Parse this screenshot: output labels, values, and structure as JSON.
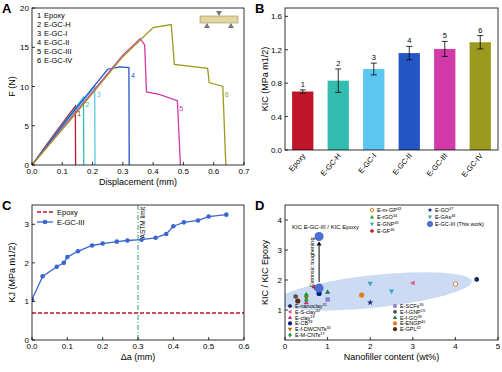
{
  "chart_data": [
    {
      "type": "line",
      "title": "A",
      "xlabel": "Displacement (mm)",
      "ylabel": "F (N)",
      "xlim": [
        0,
        0.7
      ],
      "xticks": [
        {
          "value": 0,
          "label": "0.0"
        },
        0.1,
        0.2,
        0.3,
        0.4,
        0.5,
        0.6,
        0.7
      ],
      "ylim": [
        0,
        20
      ],
      "yticks": [
        0,
        5,
        10,
        15,
        20
      ],
      "legend": "upper left",
      "annotations": [
        "1",
        "2",
        "3",
        "4",
        "5",
        "6"
      ],
      "series": [
        {
          "name": "Epoxy",
          "color": "#c0142a",
          "line_style": "solid",
          "x": [
            0,
            0.05,
            0.1,
            0.143,
            0.144
          ],
          "values": [
            0,
            2.7,
            5.3,
            7.5,
            0
          ]
        },
        {
          "name": "E-GC-H",
          "color": "#33bdb0",
          "line_style": "solid",
          "x": [
            0,
            0.08,
            0.17,
            0.171
          ],
          "values": [
            0,
            4.1,
            8.6,
            0
          ]
        },
        {
          "name": "E-GC-I",
          "color": "#5cc6f2",
          "line_style": "solid",
          "x": [
            0,
            0.1,
            0.207,
            0.208
          ],
          "values": [
            0,
            4.9,
            10.0,
            0
          ]
        },
        {
          "name": "E-GC-II",
          "color": "#2455c4",
          "line_style": "solid",
          "x": [
            0,
            0.12,
            0.25,
            0.29,
            0.32,
            0.321
          ],
          "values": [
            0,
            6.0,
            12.2,
            12.5,
            12.4,
            0
          ]
        },
        {
          "name": "E-GC-III",
          "color": "#d13aa8",
          "line_style": "solid",
          "x": [
            0,
            0.15,
            0.3,
            0.357,
            0.372,
            0.378,
            0.42,
            0.48,
            0.49
          ],
          "values": [
            0,
            7.0,
            14.0,
            16.1,
            15.3,
            9.3,
            9.0,
            8.2,
            0
          ]
        },
        {
          "name": "E-GC-IV",
          "color": "#9c9a1e",
          "line_style": "solid",
          "x": [
            0,
            0.15,
            0.3,
            0.4,
            0.46,
            0.47,
            0.58,
            0.585,
            0.63,
            0.64
          ],
          "values": [
            0,
            6.8,
            13.8,
            17.5,
            17.9,
            12.8,
            12.3,
            10.5,
            10.0,
            0
          ]
        }
      ]
    },
    {
      "type": "bar",
      "title": "B",
      "ylabel": "KIC (MPa m1/2)",
      "categories": [
        "Epoxy",
        "E-GC-H",
        "E-GC-I",
        "E-GC-II",
        "E-GC-III",
        "E-GC-IV"
      ],
      "values": [
        0.7,
        0.83,
        0.97,
        1.16,
        1.21,
        1.29
      ],
      "errors": [
        0.02,
        0.14,
        0.07,
        0.08,
        0.09,
        0.08
      ],
      "colors": [
        "#c0142a",
        "#33bdb0",
        "#5cc6f2",
        "#2455c4",
        "#d13aa8",
        "#9c9a1e"
      ],
      "ylim": [
        0,
        1.7
      ],
      "yticks": [
        {
          "value": 0,
          "label": "0.0"
        },
        0.4,
        0.8,
        1.2,
        1.6
      ],
      "annotations": [
        "1",
        "2",
        "3",
        "4",
        "5",
        "6"
      ]
    },
    {
      "type": "line",
      "title": "C",
      "xlabel": "Δa (mm)",
      "ylabel": "KJ (MPa m1/2)",
      "xlim": [
        0,
        0.6
      ],
      "xticks": [
        {
          "value": 0,
          "label": "0.0"
        },
        0.1,
        0.2,
        0.3,
        0.4,
        0.5,
        0.6
      ],
      "ylim": [
        0,
        3.5
      ],
      "yticks": [
        0,
        1,
        2,
        3
      ],
      "legend": "upper left",
      "annotations": [
        {
          "text": "ASTM limit",
          "x": 0.3
        }
      ],
      "series": [
        {
          "name": "Epoxy",
          "color": "#c0142a",
          "line_style": "dashed",
          "x": [
            0,
            0.6
          ],
          "values": [
            0.7,
            0.7
          ]
        },
        {
          "name": "E-GC-III",
          "color": "#3a66d0",
          "line_style": "solid",
          "marker": "circle",
          "x": [
            0,
            0.03,
            0.07,
            0.09,
            0.1,
            0.13,
            0.17,
            0.2,
            0.24,
            0.27,
            0.31,
            0.35,
            0.38,
            0.4,
            0.43,
            0.47,
            0.5,
            0.55
          ],
          "values": [
            1.05,
            1.65,
            1.9,
            2.0,
            2.15,
            2.3,
            2.45,
            2.5,
            2.55,
            2.58,
            2.6,
            2.65,
            2.75,
            2.95,
            3.05,
            3.1,
            3.2,
            3.25
          ]
        }
      ]
    },
    {
      "type": "scatter",
      "title": "D",
      "xlabel": "Nanofiller content (wt%)",
      "ylabel": "KIC / KIC Epoxy",
      "xlim": [
        0,
        5
      ],
      "xticks": [
        0,
        1,
        2,
        3,
        4,
        5
      ],
      "ylim": [
        0,
        4.5
      ],
      "yticks": [
        1,
        2,
        3,
        4
      ],
      "annotations": [
        "KIC E-GC-III / KIC Epoxy",
        "Extrinsic toughening"
      ],
      "series": [
        {
          "name": "E-nanoclay31",
          "color": "#1a2a5a",
          "marker": "hexagon",
          "x": [
            4.5
          ],
          "values": [
            2.02
          ]
        },
        {
          "name": "E-S-clay32",
          "color": "#e05a8a",
          "marker": "triangle_left",
          "x": [
            3.0
          ],
          "values": [
            1.9
          ]
        },
        {
          "name": "E-clay18",
          "color": "#c03090",
          "marker": "triangle_up",
          "x": [
            0.5
          ],
          "values": [
            1.25
          ]
        },
        {
          "name": "E-CB33",
          "color": "#0a1f7a",
          "marker": "circle",
          "x": [
            0.8
          ],
          "values": [
            1.55
          ]
        },
        {
          "name": "E-f-DWCNTs34",
          "color": "#c05a00",
          "marker": "triangle_down",
          "x": [
            0.5
          ],
          "values": [
            1.4
          ]
        },
        {
          "name": "E-M-CNTs17",
          "color": "#1f9a3a",
          "marker": "diamond",
          "x": [
            0.5
          ],
          "values": [
            1.5
          ]
        },
        {
          "name": "E-SCFs36",
          "color": "#8a7fc8",
          "marker": "square",
          "x": [
            1.0
          ],
          "values": [
            1.35
          ]
        },
        {
          "name": "E-f-GNP19",
          "color": "#555555",
          "marker": "hexagon",
          "x": [
            0.25
          ],
          "values": [
            1.45
          ]
        },
        {
          "name": "E-f-GO39",
          "color": "#1e7a50",
          "marker": "triangle_up",
          "x": [
            1.0
          ],
          "values": [
            1.6
          ]
        },
        {
          "name": "E-ENGP40",
          "color": "#e87a1a",
          "marker": "circle",
          "x": [
            1.8
          ],
          "values": [
            1.5
          ]
        },
        {
          "name": "E-GPL42",
          "color": "#5a2a1a",
          "marker": "circle",
          "x": [
            0.3
          ],
          "values": [
            1.3
          ]
        },
        {
          "name": "E-m-GP43",
          "color": "#e08030",
          "marker": "circle_open",
          "x": [
            4.0
          ],
          "values": [
            1.87
          ]
        },
        {
          "name": "E-rGO44",
          "color": "#2aa02a",
          "marker": "triangle_up",
          "x": [
            0.5
          ],
          "values": [
            1.35
          ]
        },
        {
          "name": "E-GNP45",
          "color": "#30b0d0",
          "marker": "triangle_down",
          "x": [
            2.5
          ],
          "values": [
            1.62
          ]
        },
        {
          "name": "E-GF46",
          "color": "#c01030",
          "marker": "plus",
          "x": [
            0.7
          ],
          "values": [
            1.75
          ]
        },
        {
          "name": "E-GO47",
          "color": "#1a2a7a",
          "marker": "star",
          "x": [
            2.0
          ],
          "values": [
            1.25
          ]
        },
        {
          "name": "E-GAs48",
          "color": "#4aa0c0",
          "marker": "triangle_down",
          "x": [
            2.0
          ],
          "values": [
            1.88
          ]
        },
        {
          "name": "E-GC-III (This work)",
          "color": "#4a6fd0",
          "marker": "large_circle",
          "x": [
            0.8,
            0.8
          ],
          "values": [
            1.73,
            3.45
          ]
        }
      ]
    }
  ]
}
